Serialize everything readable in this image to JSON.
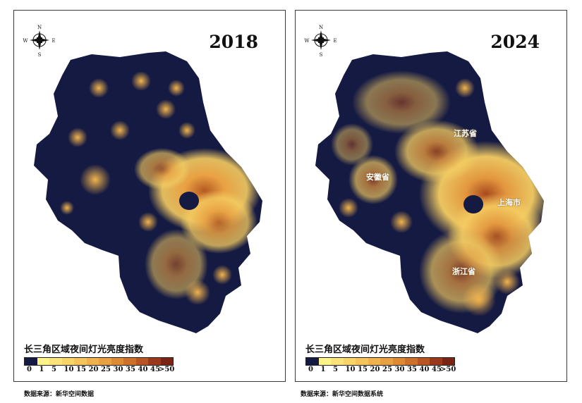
{
  "maps": [
    {
      "year": "2018",
      "legend_title": "长三角区域夜间灯光亮度指数",
      "source": "数据来源：新华空间数据",
      "province_labels": []
    },
    {
      "year": "2024",
      "legend_title": "长三角区域夜间灯光亮度指数",
      "source": "数据来源：新华空间数据系统",
      "province_labels": [
        "江苏省",
        "安徽省",
        "上海市",
        "浙江省"
      ]
    }
  ],
  "compass": {
    "n": "N",
    "s": "S",
    "e": "E",
    "w": "W"
  },
  "legend": {
    "ticks": [
      "0",
      "1",
      "5",
      "10",
      "15",
      "20",
      "25",
      "30",
      "35",
      "40",
      "45",
      ">50"
    ],
    "colors": [
      "#151a42",
      "#fff38a",
      "#fbe27a",
      "#f8d46a",
      "#f5c45c",
      "#f0b24c",
      "#e9a042",
      "#dd8a36",
      "#cc702d",
      "#b75524",
      "#9a3a1c",
      "#7a2414"
    ]
  },
  "colors": {
    "background": "#151a42",
    "glow": "#f5c95a",
    "core": "#9a3a1c"
  },
  "chart_data": {
    "type": "heatmap",
    "title": "长三角区域夜间灯光亮度指数",
    "scale_ticks": [
      "0",
      "1",
      "5",
      "10",
      "15",
      "20",
      "25",
      "30",
      "35",
      "40",
      "45",
      ">50"
    ],
    "panels": [
      "2018",
      "2024"
    ]
  }
}
